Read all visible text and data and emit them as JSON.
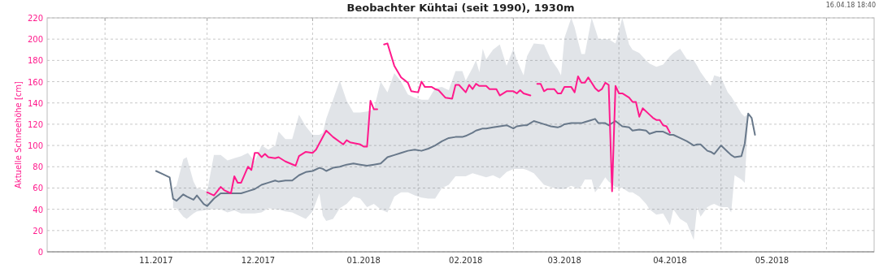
{
  "chart_data": {
    "type": "line",
    "title": "Beobachter Kühtai (seit 1990), 1930m",
    "ylabel": "Aktuelle Schneehöhe [cm]",
    "annotations": [
      "16.04.18 18:40"
    ],
    "xlim": [
      "2017-10-15",
      "2018-06-15"
    ],
    "ylim": [
      0,
      220
    ],
    "xticks": [
      {
        "value": "2017-11-01",
        "label": null
      },
      {
        "value": "2017-11-16",
        "label": "11.2017"
      },
      {
        "value": "2017-12-01",
        "label": null
      },
      {
        "value": "2017-12-16",
        "label": "12.2017"
      },
      {
        "value": "2018-01-01",
        "label": null
      },
      {
        "value": "2018-01-16",
        "label": "01.2018"
      },
      {
        "value": "2018-02-01",
        "label": null
      },
      {
        "value": "2018-02-15",
        "label": "02.2018"
      },
      {
        "value": "2018-03-01",
        "label": null
      },
      {
        "value": "2018-03-16",
        "label": "03.2018"
      },
      {
        "value": "2018-04-01",
        "label": null
      },
      {
        "value": "2018-04-16",
        "label": "04.2018"
      },
      {
        "value": "2018-05-01",
        "label": null
      },
      {
        "value": "2018-05-16",
        "label": "05.2018"
      },
      {
        "value": "2018-06-01",
        "label": null
      }
    ],
    "yticks": [
      0,
      20,
      40,
      60,
      80,
      100,
      120,
      140,
      160,
      180,
      200,
      220
    ],
    "grid": true,
    "marker": "none",
    "line_style": "solid",
    "series": [
      {
        "color": "#68788a",
        "x": [
          "2017-11-16",
          "2017-11-18",
          "2017-11-20",
          "2017-11-21",
          "2017-11-22",
          "2017-11-24",
          "2017-11-25",
          "2017-11-27",
          "2017-11-28",
          "2017-11-30",
          "2017-12-01",
          "2017-12-03",
          "2017-12-05",
          "2017-12-07",
          "2017-12-09",
          "2017-12-11",
          "2017-12-13",
          "2017-12-15",
          "2017-12-17",
          "2017-12-19",
          "2017-12-21",
          "2017-12-22",
          "2017-12-24",
          "2017-12-26",
          "2017-12-28",
          "2017-12-30",
          "2018-01-01",
          "2018-01-03",
          "2018-01-04",
          "2018-01-05",
          "2018-01-07",
          "2018-01-09",
          "2018-01-11",
          "2018-01-13",
          "2018-01-15",
          "2018-01-17",
          "2018-01-19",
          "2018-01-21",
          "2018-01-23",
          "2018-01-25",
          "2018-01-27",
          "2018-01-29",
          "2018-01-31",
          "2018-02-02",
          "2018-02-04",
          "2018-02-06",
          "2018-02-08",
          "2018-02-10",
          "2018-02-12",
          "2018-02-14",
          "2018-02-15",
          "2018-02-17",
          "2018-02-18",
          "2018-02-19",
          "2018-02-20",
          "2018-02-21",
          "2018-02-23",
          "2018-02-25",
          "2018-02-27",
          "2018-03-01",
          "2018-03-02",
          "2018-03-04",
          "2018-03-05",
          "2018-03-07",
          "2018-03-10",
          "2018-03-12",
          "2018-03-14",
          "2018-03-15",
          "2018-03-16",
          "2018-03-18",
          "2018-03-19",
          "2018-03-20",
          "2018-03-21",
          "2018-03-22",
          "2018-03-24",
          "2018-03-25",
          "2018-03-26",
          "2018-03-28",
          "2018-03-29",
          "2018-03-31",
          "2018-04-02",
          "2018-04-04",
          "2018-04-05",
          "2018-04-07",
          "2018-04-09",
          "2018-04-10",
          "2018-04-12",
          "2018-04-14",
          "2018-04-16",
          "2018-04-17",
          "2018-04-19",
          "2018-04-21",
          "2018-04-23",
          "2018-04-24",
          "2018-04-25",
          "2018-04-27",
          "2018-04-28",
          "2018-04-29",
          "2018-05-01",
          "2018-05-03",
          "2018-05-04",
          "2018-05-05",
          "2018-05-07",
          "2018-05-08",
          "2018-05-09",
          "2018-05-10",
          "2018-05-11"
        ],
        "values": [
          76,
          73,
          70,
          50,
          48,
          54,
          52,
          49,
          53,
          45,
          43,
          50,
          55,
          55,
          55,
          55,
          57,
          59,
          63,
          65,
          67,
          66,
          67,
          67,
          72,
          75,
          76,
          79,
          78,
          76,
          79,
          80,
          82,
          83,
          82,
          81,
          82,
          83,
          89,
          91,
          93,
          95,
          96,
          95,
          97,
          100,
          104,
          107,
          108,
          108,
          109,
          112,
          114,
          115,
          116,
          116,
          117,
          118,
          119,
          116,
          118,
          119,
          119,
          123,
          120,
          118,
          117,
          118,
          120,
          121,
          121,
          121,
          121,
          122,
          124,
          125,
          121,
          121,
          119,
          123,
          118,
          117,
          114,
          115,
          114,
          111,
          113,
          113,
          110,
          110,
          107,
          104,
          100,
          101,
          101,
          95,
          94,
          92,
          100,
          94,
          91,
          89,
          90,
          102,
          130,
          126,
          110
        ],
        "lower": [
          null,
          null,
          null,
          41,
          41,
          33,
          31,
          36,
          38,
          39,
          40,
          40,
          40,
          37,
          39,
          36,
          36,
          36,
          37,
          41,
          40,
          40,
          38,
          37,
          34,
          31,
          38,
          55,
          34,
          29,
          31,
          41,
          45,
          52,
          50,
          42,
          45,
          40,
          37,
          52,
          56,
          56,
          53,
          51,
          50,
          50,
          60,
          63,
          71,
          71,
          71,
          74,
          73,
          72,
          71,
          70,
          72,
          69,
          75,
          78,
          78,
          78,
          77,
          74,
          63,
          61,
          59,
          59,
          59,
          62,
          61,
          59,
          62,
          68,
          68,
          56,
          60,
          70,
          66,
          61,
          60,
          56,
          56,
          52,
          45,
          40,
          35,
          36,
          25,
          40,
          31,
          27,
          11,
          42,
          33,
          42,
          44,
          45,
          42,
          42,
          37,
          72,
          68,
          65,
          128,
          null,
          null
        ],
        "upper": [
          null,
          null,
          null,
          60,
          62,
          87,
          89,
          66,
          60,
          58,
          57,
          91,
          91,
          86,
          88,
          90,
          93,
          85,
          100,
          96,
          100,
          113,
          106,
          106,
          129,
          118,
          110,
          110,
          112,
          125,
          143,
          161,
          142,
          131,
          131,
          132,
          134,
          160,
          150,
          168,
          160,
          148,
          145,
          143,
          143,
          154,
          155,
          152,
          170,
          170,
          161,
          173,
          180,
          169,
          191,
          181,
          190,
          195,
          175,
          191,
          180,
          166,
          184,
          196,
          195,
          181,
          172,
          166,
          201,
          220,
          211,
          198,
          186,
          186,
          220,
          210,
          200,
          200,
          200,
          196,
          220,
          195,
          190,
          187,
          180,
          177,
          174,
          176,
          184,
          187,
          191,
          181,
          180,
          175,
          169,
          160,
          156,
          166,
          164,
          150,
          146,
          141,
          130,
          127,
          130,
          null,
          null
        ]
      },
      {
        "color": "#ff1a8c",
        "x": [
          "2017-12-01",
          "2017-12-03",
          "2017-12-05",
          "2017-12-06",
          "2017-12-08",
          "2017-12-09",
          "2017-12-10",
          "2017-12-11",
          "2017-12-13",
          "2017-12-14",
          "2017-12-15",
          "2017-12-16",
          "2017-12-17",
          "2017-12-18",
          "2017-12-19",
          "2017-12-21",
          "2017-12-22",
          "2017-12-24",
          "2017-12-27",
          "2017-12-28",
          "2017-12-30",
          "2018-01-01",
          "2018-01-02",
          "2018-01-05",
          "2018-01-07",
          "2018-01-10",
          "2018-01-11",
          "2018-01-12",
          "2018-01-15",
          "2018-01-16",
          "2018-01-17",
          "2018-01-18",
          "2018-01-19",
          "2018-01-20",
          "2018-01-21",
          "2018-01-22",
          "2018-01-23",
          "2018-01-25",
          "2018-01-27",
          "2018-01-29",
          "2018-01-30",
          "2018-02-01",
          "2018-02-02",
          "2018-02-03",
          "2018-02-05",
          "2018-02-06",
          "2018-02-07",
          "2018-02-09",
          "2018-02-11",
          "2018-02-12",
          "2018-02-13",
          "2018-02-15",
          "2018-02-16",
          "2018-02-17",
          "2018-02-18",
          "2018-02-19",
          "2018-02-21",
          "2018-02-22",
          "2018-02-24",
          "2018-02-25",
          "2018-02-27",
          "2018-03-01",
          "2018-03-02",
          "2018-03-03",
          "2018-03-04",
          "2018-03-06",
          "2018-03-07",
          "2018-03-08",
          "2018-03-09",
          "2018-03-10",
          "2018-03-11",
          "2018-03-13",
          "2018-03-14",
          "2018-03-15",
          "2018-03-16",
          "2018-03-18",
          "2018-03-19",
          "2018-03-20",
          "2018-03-21",
          "2018-03-22",
          "2018-03-23",
          "2018-03-25",
          "2018-03-26",
          "2018-03-27",
          "2018-03-28",
          "2018-03-29",
          "2018-03-30",
          "2018-03-31",
          "2018-04-01",
          "2018-04-02",
          "2018-04-04",
          "2018-04-05",
          "2018-04-06",
          "2018-04-07",
          "2018-04-08",
          "2018-04-10",
          "2018-04-11",
          "2018-04-12",
          "2018-04-13",
          "2018-04-14",
          "2018-04-15",
          "2018-04-16"
        ],
        "values": [
          56,
          53,
          61,
          58,
          55,
          71,
          65,
          65,
          80,
          77,
          93,
          93,
          89,
          92,
          89,
          88,
          89,
          85,
          81,
          90,
          94,
          93,
          96,
          114,
          108,
          101,
          105,
          103,
          101,
          99,
          99,
          142,
          134,
          134,
          null,
          195,
          196,
          175,
          164,
          159,
          151,
          150,
          160,
          155,
          155,
          153,
          152,
          145,
          144,
          157,
          157,
          150,
          157,
          153,
          158,
          156,
          156,
          153,
          153,
          147,
          151,
          151,
          149,
          152,
          149,
          147,
          null,
          158,
          158,
          151,
          153,
          153,
          149,
          149,
          155,
          155,
          150,
          165,
          159,
          159,
          164,
          154,
          151,
          153,
          159,
          157,
          57,
          156,
          149,
          149,
          145,
          141,
          141,
          127,
          135,
          129,
          126,
          124,
          124,
          119,
          118,
          112
        ]
      }
    ]
  }
}
